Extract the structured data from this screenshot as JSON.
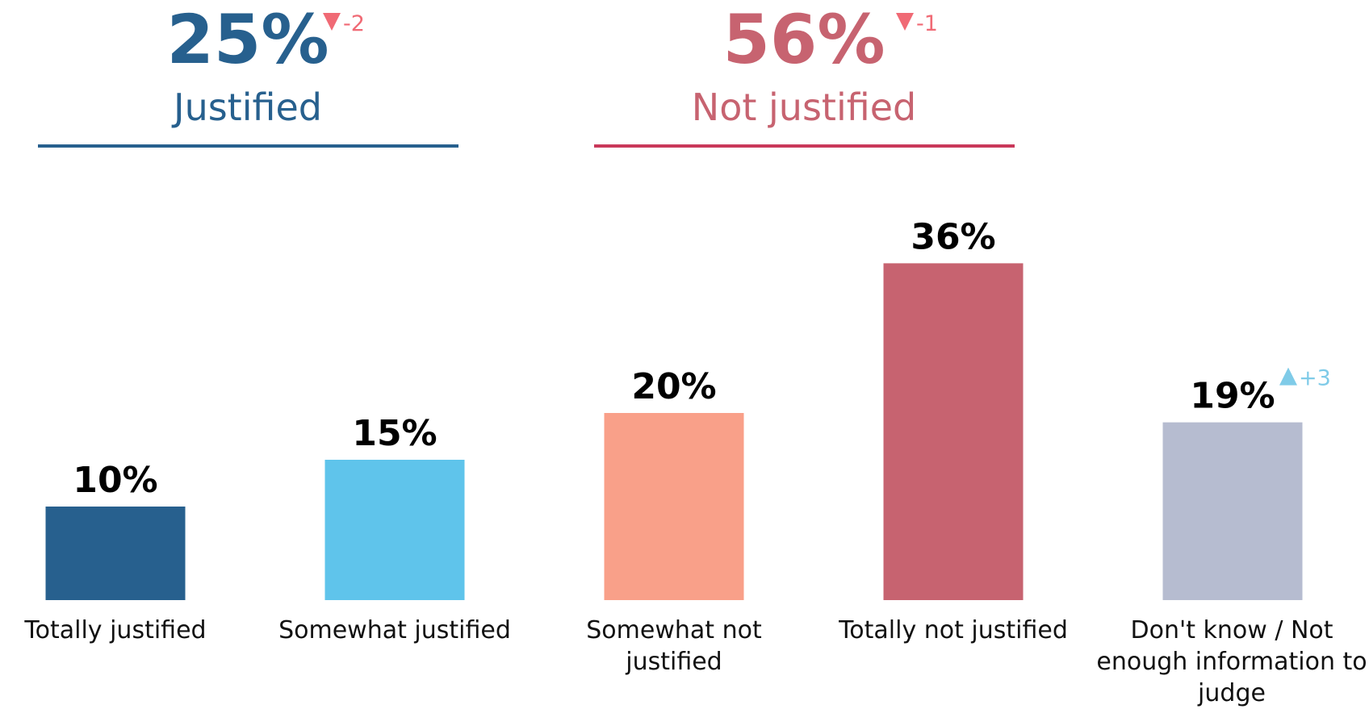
{
  "chart_data": {
    "type": "bar",
    "categories": [
      "Totally justified",
      "Somewhat justified",
      "Somewhat not justified",
      "Totally not justified",
      "Don't know / Not enough information to judge"
    ],
    "values": [
      10,
      15,
      20,
      36,
      19
    ],
    "value_labels": [
      "10%",
      "15%",
      "20%",
      "36%",
      "19%"
    ],
    "colors": [
      "#27608e",
      "#5fc4eb",
      "#f9a089",
      "#c76370",
      "#b6bcd0"
    ],
    "changes": [
      null,
      null,
      null,
      null,
      {
        "value": 3,
        "label": "+3"
      }
    ],
    "summary": [
      {
        "name": "Justified",
        "value": 25,
        "value_label": "25%",
        "change": -2,
        "color": "#27608e",
        "line_color": "#27608e"
      },
      {
        "name": "Not justified",
        "value": 56,
        "value_label": "56%",
        "change": -1,
        "color": "#c76370",
        "line_color": "#c9385a"
      }
    ]
  }
}
